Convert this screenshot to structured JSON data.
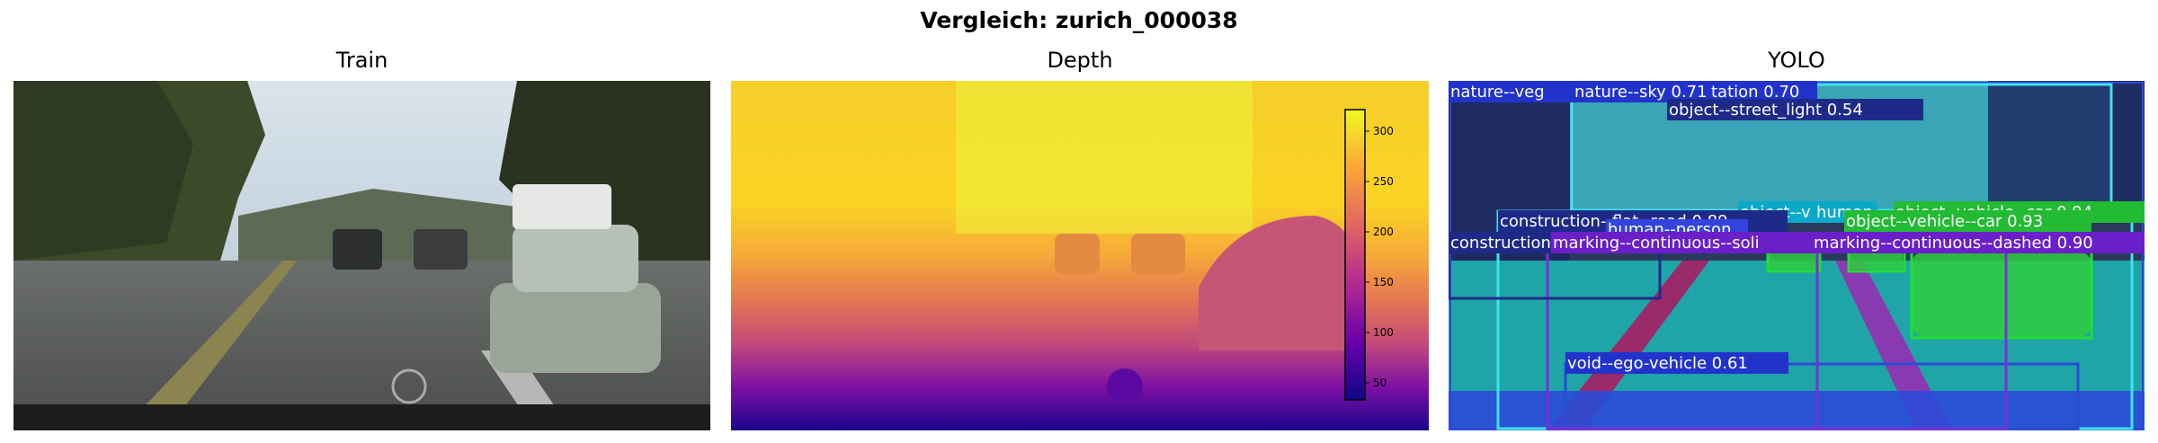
{
  "figure": {
    "title": "Vergleich: zurich_000038"
  },
  "panels": [
    {
      "title": "Train",
      "image": "street-scene-photo"
    },
    {
      "title": "Depth",
      "image": "depth-map",
      "colormap": "plasma"
    },
    {
      "title": "YOLO",
      "image": "segmentation-overlay"
    }
  ],
  "colorbar": {
    "ticks": [
      "300",
      "250",
      "200",
      "150",
      "100",
      "50"
    ]
  },
  "detections": [
    {
      "label": "nature--veg",
      "color": "#2233cc"
    },
    {
      "label": "nature--sky  0.71",
      "color": "#2233cc"
    },
    {
      "label": "tation  0.70",
      "color": "#2233cc"
    },
    {
      "label": "object--street_light  0.54",
      "color": "#1e2a88"
    },
    {
      "label": "object--vehicle--car  0.94",
      "color": "#22bb33"
    },
    {
      "label": "construction--flat--road  0.89",
      "color": "#1e2a88"
    },
    {
      "label": "human",
      "color": "#0aa9c9"
    },
    {
      "label": "object--v",
      "color": "#0aa9c9"
    },
    {
      "label": "human--person",
      "color": "#3344dd"
    },
    {
      "label": "object--vehicle--car  0.93",
      "color": "#22bb33"
    },
    {
      "label": "construction",
      "color": "#1e2a88"
    },
    {
      "label": "marking--continuous--soli",
      "color": "#6a1fc9"
    },
    {
      "label": "marking--continuous--dashed  0.90",
      "color": "#6a1fc9"
    },
    {
      "label": "void--ego-vehicle  0.61",
      "color": "#2233cc"
    }
  ]
}
